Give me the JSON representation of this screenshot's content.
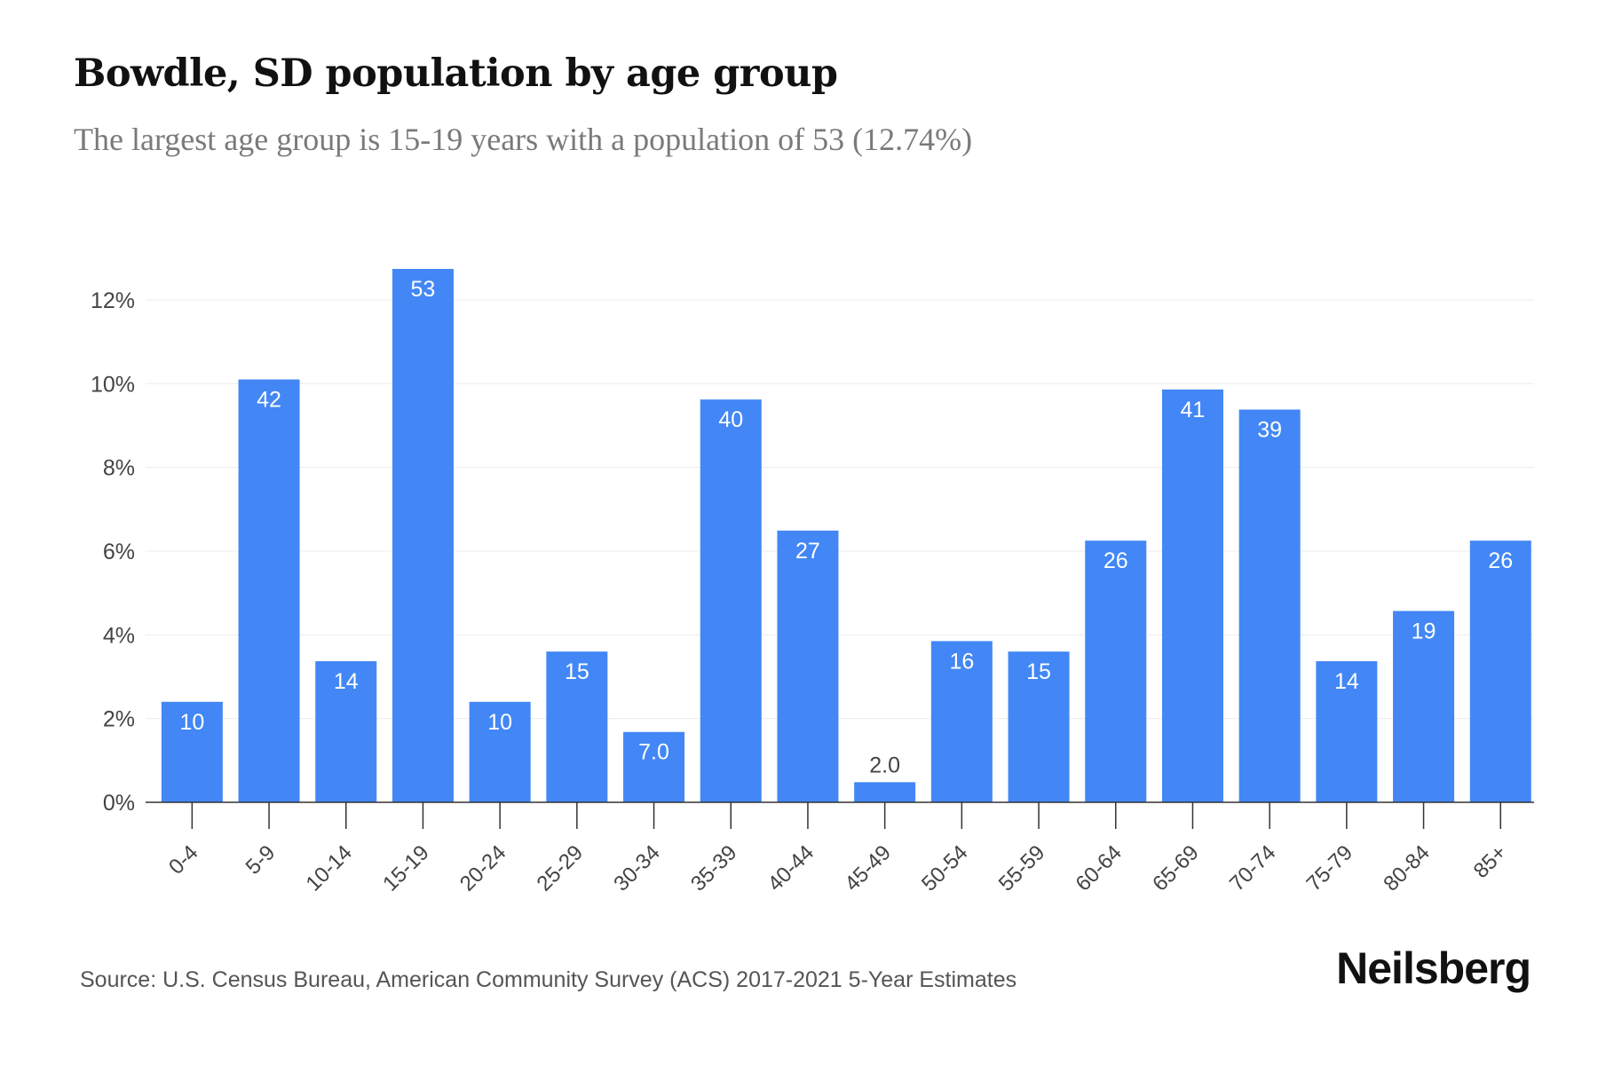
{
  "header": {
    "title": "Bowdle, SD population by age group",
    "subtitle": "The largest age group is 15-19 years with a population of 53 (12.74%)"
  },
  "footer": {
    "source": "Source: U.S. Census Bureau, American Community Survey (ACS) 2017-2021 5-Year Estimates",
    "brand": "Neilsberg"
  },
  "colors": {
    "bar": "#4287f5",
    "bar_label": "#ffffff",
    "outside_label": "#444444",
    "axis_text": "#444444",
    "grid": "#ececec",
    "axis_line": "#333333"
  },
  "chart_data": {
    "type": "bar",
    "title": "Bowdle, SD population by age group",
    "subtitle": "The largest age group is 15-19 years with a population of 53 (12.74%)",
    "xlabel": "",
    "ylabel": "",
    "categories": [
      "0-4",
      "5-9",
      "10-14",
      "15-19",
      "20-24",
      "25-29",
      "30-34",
      "35-39",
      "40-44",
      "45-49",
      "50-54",
      "55-59",
      "60-64",
      "65-69",
      "70-74",
      "75-79",
      "80-84",
      "85+"
    ],
    "values": [
      2.4,
      10.1,
      3.37,
      12.74,
      2.4,
      3.6,
      1.68,
      9.62,
      6.49,
      0.48,
      3.85,
      3.6,
      6.25,
      9.86,
      9.38,
      3.37,
      4.57,
      6.25
    ],
    "data_labels": [
      "10",
      "42",
      "14",
      "53",
      "10",
      "15",
      "7.0",
      "40",
      "27",
      "2.0",
      "16",
      "15",
      "26",
      "41",
      "39",
      "14",
      "19",
      "26"
    ],
    "value_unit": "percent",
    "ylim": [
      0,
      12.74
    ],
    "yticks": [
      0,
      2,
      4,
      6,
      8,
      10,
      12
    ],
    "ytick_labels": [
      "0%",
      "2%",
      "4%",
      "6%",
      "8%",
      "10%",
      "12%"
    ],
    "grid": true,
    "legend": "none"
  }
}
